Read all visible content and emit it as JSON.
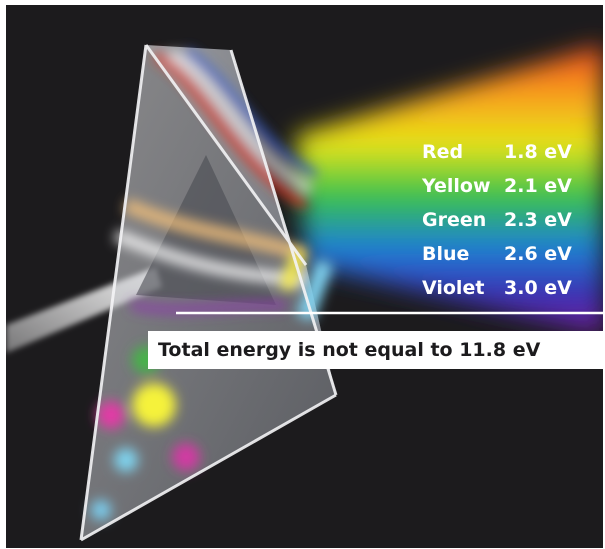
{
  "colors": {
    "background": "#1c1b1d",
    "caption_bg": "#ffffff",
    "caption_text": "#1c1b1d",
    "table_text": "#ffffff"
  },
  "energy_table": [
    {
      "color": "Red",
      "energy": "1.8 eV"
    },
    {
      "color": "Yellow",
      "energy": "2.1 eV"
    },
    {
      "color": "Green",
      "energy": "2.3 eV"
    },
    {
      "color": "Blue",
      "energy": "2.6 eV"
    },
    {
      "color": "Violet",
      "energy": "3.0 eV"
    }
  ],
  "caption": "Total energy is not equal to 11.8 eV"
}
